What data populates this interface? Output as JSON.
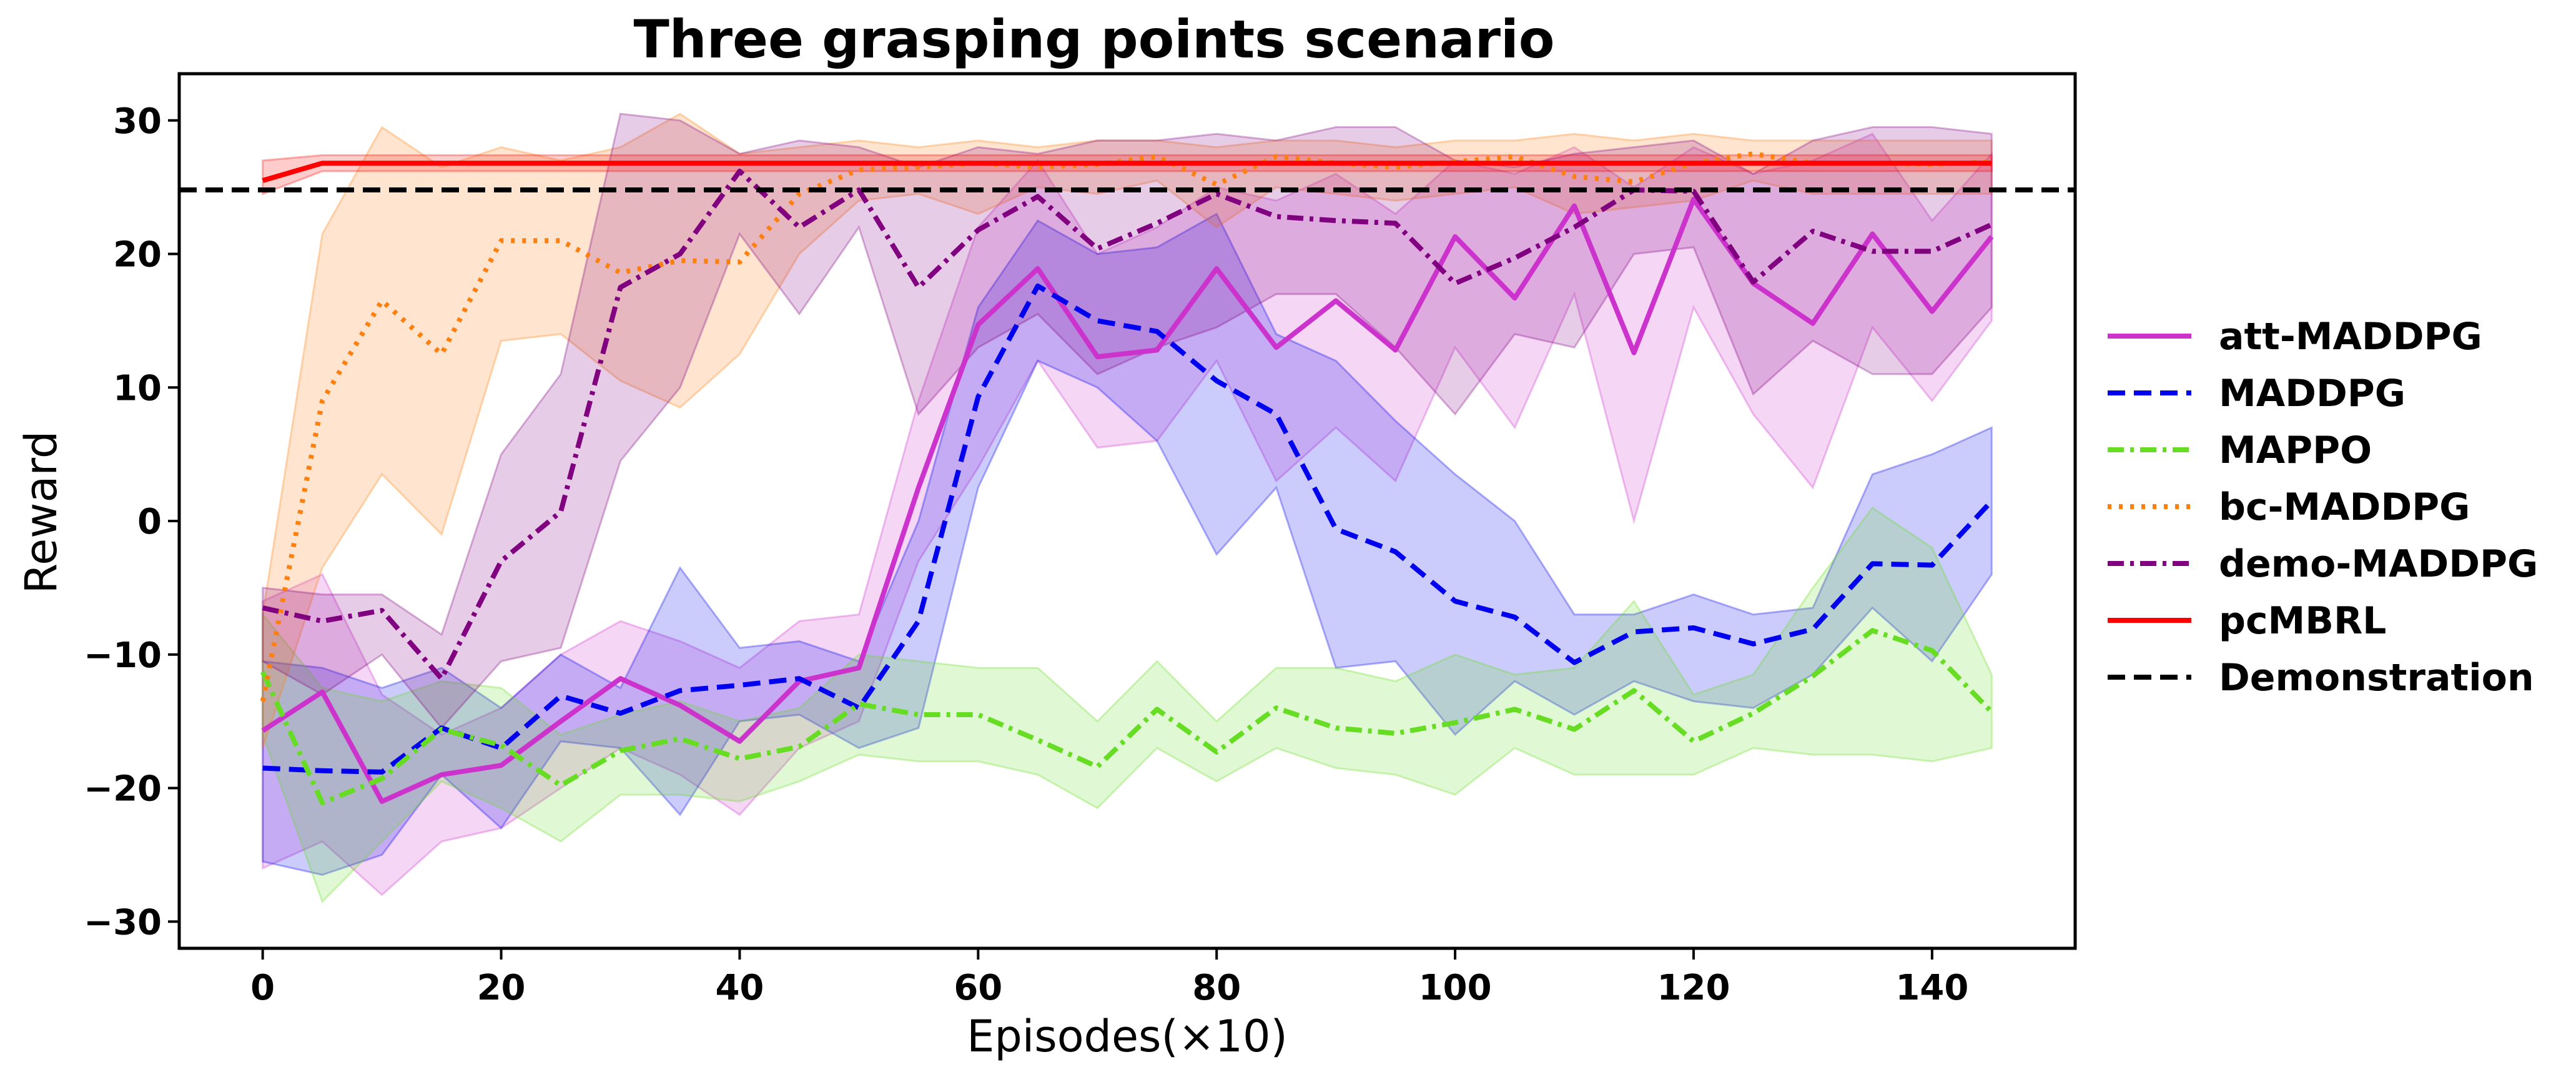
{
  "chart_data": {
    "type": "line",
    "title": "Three grasping points scenario",
    "xlabel": "Episodes(×10)",
    "ylabel": "Reward",
    "xlim": [
      -7,
      152
    ],
    "ylim": [
      -32,
      33.5
    ],
    "xticks": [
      0,
      20,
      40,
      60,
      80,
      100,
      120,
      140
    ],
    "yticks": [
      -30,
      -20,
      -10,
      0,
      10,
      20,
      30
    ],
    "xtick_labels": [
      "0",
      "20",
      "40",
      "60",
      "80",
      "100",
      "120",
      "140"
    ],
    "ytick_labels": [
      "−30",
      "−20",
      "−10",
      "0",
      "10",
      "20",
      "30"
    ],
    "grid": false,
    "legend_position": "outside-right",
    "x": [
      0,
      5,
      10,
      15,
      20,
      25,
      30,
      35,
      40,
      45,
      50,
      55,
      60,
      65,
      70,
      75,
      80,
      85,
      90,
      95,
      100,
      105,
      110,
      115,
      120,
      125,
      130,
      135,
      140,
      145
    ],
    "series": [
      {
        "name": "att-MADDPG",
        "color": "#cc33cc",
        "dash": "solid",
        "values": [
          -15.7,
          -12.8,
          -21,
          -19,
          -18.3,
          -15,
          -11.8,
          -13.8,
          -16.5,
          -12,
          -11,
          2.5,
          14.7,
          18.9,
          12.3,
          12.8,
          18.9,
          13,
          16.5,
          12.8,
          21.3,
          16.7,
          23.6,
          12.6,
          24.1,
          17.8,
          14.8,
          21.5,
          15.7,
          21.3
        ],
        "lower": [
          -26,
          -24,
          -28,
          -24,
          -23,
          -20,
          -17,
          -19,
          -22,
          -17,
          -15,
          -3,
          4,
          12,
          5.5,
          6,
          12,
          3,
          7,
          3,
          13,
          7,
          17,
          0,
          16,
          8,
          2.5,
          14.5,
          9,
          15
        ],
        "upper": [
          -6,
          -4,
          -13,
          -16,
          -14,
          -10,
          -7.5,
          -9,
          -11,
          -7.5,
          -7,
          9,
          22,
          27,
          20,
          22,
          25,
          24,
          26,
          23,
          27,
          26,
          28,
          25,
          28,
          26,
          27,
          29,
          22.5,
          27.5
        ]
      },
      {
        "name": "MADDPG",
        "color": "#0000ee",
        "dash": "dashed",
        "values": [
          -18.5,
          -18.7,
          -18.8,
          -15.5,
          -17,
          -13.1,
          -14.4,
          -12.7,
          -12.3,
          -11.8,
          -14,
          -7.5,
          9.3,
          17.6,
          15,
          14.2,
          10.5,
          8,
          -0.6,
          -2.3,
          -6,
          -7.2,
          -10.6,
          -8.3,
          -8,
          -9.2,
          -8.1,
          -3.2,
          -3.3,
          1.5
        ],
        "lower": [
          -25.5,
          -26.5,
          -25,
          -19,
          -23,
          -16.5,
          -17,
          -22,
          -15,
          -14.5,
          -17,
          -15.5,
          2.5,
          12,
          10,
          6,
          -2.5,
          2.5,
          -11,
          -10.5,
          -16,
          -12,
          -14.5,
          -12,
          -13.5,
          -14,
          -11.5,
          -6.5,
          -10.5,
          -4
        ],
        "upper": [
          -10.5,
          -11,
          -12.5,
          -11,
          -14,
          -10,
          -12.5,
          -3.5,
          -9.5,
          -9,
          -10.5,
          0,
          16,
          22.5,
          20,
          20.5,
          23,
          14,
          12,
          7.5,
          3.5,
          0,
          -7,
          -7,
          -5.5,
          -7,
          -6.5,
          3.5,
          5,
          7
        ]
      },
      {
        "name": "MAPPO",
        "color": "#66dd22",
        "dash": "dashdot",
        "values": [
          -11.3,
          -21.1,
          -19.3,
          -15.6,
          -16.8,
          -19.8,
          -17.2,
          -16.3,
          -17.8,
          -16.9,
          -13.7,
          -14.5,
          -14.5,
          -16.4,
          -18.4,
          -14.1,
          -17.3,
          -14,
          -15.5,
          -15.9,
          -15.1,
          -14.1,
          -15.6,
          -12.7,
          -16.5,
          -14.4,
          -11.6,
          -8.2,
          -9.7,
          -14.3
        ],
        "lower": [
          -16,
          -28.5,
          -24,
          -19.5,
          -21.5,
          -24,
          -20.5,
          -20.5,
          -21,
          -19.5,
          -17.5,
          -18,
          -18,
          -19,
          -21.5,
          -17,
          -19.5,
          -17,
          -18.5,
          -19,
          -20.5,
          -17,
          -19,
          -19,
          -19,
          -17,
          -17.5,
          -17.5,
          -18,
          -17
        ],
        "upper": [
          -7,
          -12.5,
          -13.5,
          -12,
          -12.5,
          -16,
          -14.5,
          -13.5,
          -15,
          -14,
          -10,
          -10.5,
          -11,
          -11,
          -15,
          -10.5,
          -15,
          -11,
          -11,
          -12,
          -10,
          -11.5,
          -11,
          -6,
          -13,
          -11.5,
          -5,
          1,
          -2,
          -11.5
        ]
      },
      {
        "name": "bc-MADDPG",
        "color": "#ff7f0e",
        "dash": "dotted",
        "values": [
          -13.5,
          9,
          16.5,
          12.5,
          21,
          21,
          18.6,
          19.5,
          19.4,
          24.5,
          26.3,
          26.5,
          26.8,
          26.5,
          26.7,
          27.3,
          25.2,
          27.3,
          26.8,
          26.5,
          26.9,
          27.3,
          25.8,
          25.4,
          26.8,
          27.5,
          26.8,
          26.8,
          26.7,
          26.9
        ],
        "lower": [
          -17,
          -3.5,
          3.5,
          -1,
          13.5,
          14,
          10.5,
          8.5,
          12.5,
          20,
          24,
          24.5,
          23,
          25,
          24.5,
          25.5,
          22,
          25,
          24.5,
          24,
          24.5,
          25,
          23,
          23.5,
          24,
          25.5,
          24.5,
          24.5,
          24.5,
          24.5
        ],
        "upper": [
          -7,
          21.5,
          29.5,
          26.5,
          28,
          27,
          28,
          30.5,
          27.5,
          28,
          28.5,
          28,
          28.5,
          28,
          28.5,
          28.5,
          28,
          28.5,
          28.5,
          28,
          28.5,
          28.5,
          29,
          28.5,
          29,
          28.5,
          28.5,
          28.5,
          28.5,
          28.5
        ]
      },
      {
        "name": "demo-MADDPG",
        "color": "#800080",
        "dash": "dashdot",
        "values": [
          -6.5,
          -7.5,
          -6.7,
          -11.8,
          -3,
          0.7,
          17.5,
          20,
          26.2,
          22,
          24.8,
          17.5,
          21.8,
          24.3,
          20.4,
          22.3,
          24.5,
          22.8,
          22.5,
          22.3,
          17.8,
          19.7,
          22,
          24.8,
          24.7,
          17.9,
          21.7,
          20.2,
          20.2,
          22.2
        ],
        "lower": [
          -10.5,
          -13,
          -10,
          -15.5,
          -10.5,
          -9.5,
          4.5,
          10,
          21.5,
          15.5,
          22,
          8,
          13,
          15.5,
          11,
          13,
          14.5,
          17,
          17,
          13,
          8,
          14,
          13,
          20,
          20.5,
          9.5,
          13.5,
          11,
          11,
          16
        ],
        "upper": [
          -5,
          -5.5,
          -5.5,
          -8.5,
          5,
          11,
          30.5,
          30,
          27.5,
          28.5,
          28,
          26.5,
          28,
          27.5,
          28.5,
          28.5,
          29,
          28.5,
          29.5,
          29.5,
          27,
          26.5,
          27.5,
          28,
          28.5,
          26,
          28.5,
          29.5,
          29.5,
          29
        ]
      },
      {
        "name": "pcMBRL",
        "color": "#ff0000",
        "dash": "solid",
        "values": [
          25.5,
          26.8,
          26.8,
          26.8,
          26.8,
          26.8,
          26.8,
          26.8,
          26.8,
          26.8,
          26.8,
          26.8,
          26.8,
          26.8,
          26.8,
          26.8,
          26.8,
          26.8,
          26.8,
          26.8,
          26.8,
          26.8,
          26.8,
          26.8,
          26.8,
          26.8,
          26.8,
          26.8,
          26.8,
          26.8
        ],
        "lower": [
          24.5,
          26.2,
          26.2,
          26.2,
          26.2,
          26.2,
          26.2,
          26.2,
          26.2,
          26.2,
          26.2,
          26.2,
          26.2,
          26.2,
          26.2,
          26.2,
          26.2,
          26.2,
          26.2,
          26.2,
          26.2,
          26.2,
          26.2,
          26.2,
          26.2,
          26.2,
          26.2,
          26.2,
          26.2,
          26.2
        ],
        "upper": [
          27,
          27.4,
          27.4,
          27.4,
          27.4,
          27.4,
          27.4,
          27.4,
          27.4,
          27.4,
          27.4,
          27.4,
          27.4,
          27.4,
          27.4,
          27.4,
          27.4,
          27.4,
          27.4,
          27.4,
          27.4,
          27.4,
          27.4,
          27.4,
          27.4,
          27.4,
          27.4,
          27.4,
          27.4,
          27.4
        ]
      },
      {
        "name": "Demonstration",
        "color": "#000000",
        "dash": "dashed",
        "type": "hline",
        "value": 24.8
      }
    ]
  }
}
